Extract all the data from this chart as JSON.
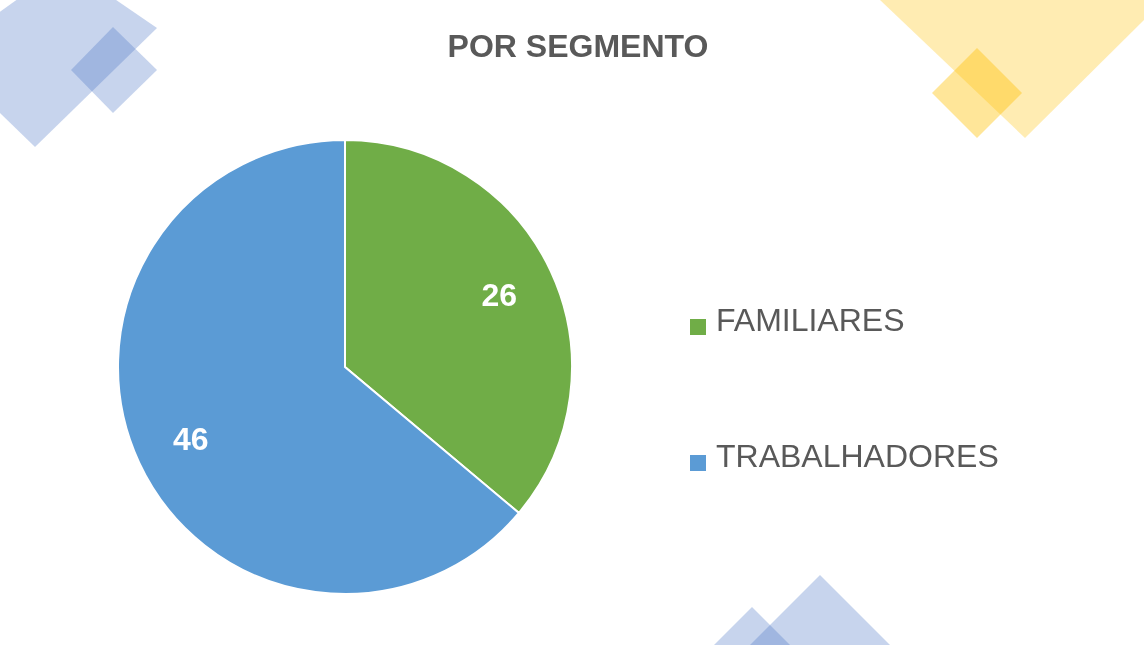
{
  "chart_data": {
    "type": "pie",
    "title": "POR SEGMENTO",
    "categories": [
      "FAMILIARES",
      "TRABALHADORES"
    ],
    "values": [
      26,
      46
    ],
    "colors": [
      "#70ad47",
      "#5b9bd5"
    ],
    "data_labels": true,
    "legend": "right"
  }
}
